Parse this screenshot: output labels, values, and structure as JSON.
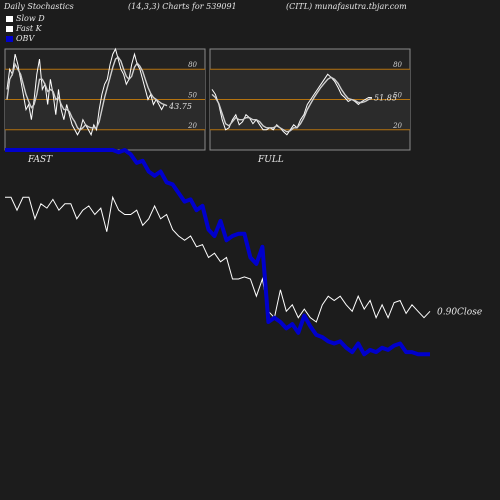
{
  "header": {
    "left": "Daily Stochastics",
    "mid": "(14,3,3) Charts for 539091",
    "right": "(CITL) munafasutra.tbjar.com"
  },
  "legend": [
    {
      "label": "Slow  D",
      "color": "#ffffff"
    },
    {
      "label": "Fast K",
      "color": "#ffffff"
    },
    {
      "label": "OBV",
      "color": "#0000cc"
    }
  ],
  "chart_data": [
    {
      "type": "line",
      "name": "fast-stochastics",
      "title": "FAST",
      "ylim": [
        0,
        100
      ],
      "yticks": [
        20,
        50,
        80
      ],
      "hlines": [
        20,
        50,
        80
      ],
      "last_value_label": "43.75",
      "series": [
        {
          "name": "Fast K",
          "values": [
            60,
            80,
            75,
            95,
            85,
            70,
            55,
            40,
            45,
            30,
            50,
            75,
            90,
            60,
            65,
            45,
            70,
            55,
            35,
            60,
            40,
            30,
            45,
            35,
            25,
            20,
            15,
            20,
            30,
            25,
            20,
            15,
            25,
            20,
            40,
            55,
            65,
            70,
            85,
            95,
            100,
            90,
            80,
            75,
            65,
            70,
            85,
            95,
            85,
            80,
            70,
            60,
            50,
            55,
            45,
            50,
            45,
            40,
            45,
            43.75
          ]
        },
        {
          "name": "Slow D",
          "values": [
            50,
            70,
            75,
            85,
            80,
            75,
            65,
            55,
            48,
            42,
            45,
            55,
            70,
            70,
            65,
            58,
            60,
            58,
            50,
            52,
            45,
            40,
            40,
            38,
            32,
            28,
            22,
            20,
            22,
            25,
            23,
            22,
            22,
            22,
            28,
            40,
            52,
            62,
            72,
            82,
            90,
            92,
            88,
            80,
            73,
            70,
            73,
            82,
            86,
            83,
            78,
            70,
            62,
            56,
            52,
            50,
            48,
            46,
            45,
            44
          ]
        }
      ]
    },
    {
      "type": "line",
      "name": "full-stochastics",
      "title": "FULL",
      "ylim": [
        0,
        100
      ],
      "yticks": [
        20,
        50,
        80
      ],
      "hlines": [
        20,
        50,
        80
      ],
      "last_value_label": "51.85",
      "series": [
        {
          "name": "Fast K",
          "values": [
            60,
            55,
            45,
            30,
            20,
            22,
            30,
            35,
            25,
            28,
            35,
            32,
            26,
            30,
            25,
            20,
            20,
            22,
            20,
            25,
            22,
            18,
            15,
            20,
            25,
            22,
            30,
            35,
            45,
            50,
            55,
            60,
            65,
            70,
            75,
            72,
            68,
            62,
            55,
            52,
            48,
            50,
            48,
            45,
            48,
            50,
            52,
            51.85
          ]
        },
        {
          "name": "Slow D",
          "values": [
            55,
            52,
            46,
            36,
            26,
            24,
            28,
            32,
            30,
            30,
            32,
            32,
            30,
            30,
            28,
            24,
            22,
            22,
            22,
            24,
            22,
            20,
            18,
            19,
            22,
            22,
            26,
            32,
            40,
            46,
            52,
            57,
            62,
            66,
            70,
            72,
            70,
            66,
            60,
            55,
            51,
            50,
            49,
            47,
            47,
            48,
            50,
            51
          ]
        }
      ]
    },
    {
      "type": "line",
      "name": "price-obv",
      "ylim": [
        0,
        100
      ],
      "last_value_label": "0.90",
      "last_value_suffix": "Close",
      "series": [
        {
          "name": "Close",
          "color": "#ffffff",
          "values": [
            78,
            78,
            72,
            78,
            78,
            68,
            75,
            73,
            77,
            72,
            75,
            75,
            68,
            72,
            74,
            70,
            73,
            62,
            78,
            72,
            70,
            70,
            72,
            65,
            68,
            74,
            68,
            70,
            63,
            60,
            58,
            60,
            55,
            56,
            50,
            52,
            48,
            50,
            40,
            40,
            41,
            40,
            32,
            40,
            25,
            22,
            35,
            25,
            28,
            22,
            26,
            22,
            20,
            28,
            32,
            30,
            32,
            28,
            25,
            32,
            26,
            30,
            22,
            28,
            22,
            29,
            30,
            24,
            28,
            25,
            22,
            25
          ]
        },
        {
          "name": "OBV",
          "color": "#0000cc",
          "values": [
            100,
            100,
            100,
            100,
            100,
            100,
            100,
            100,
            100,
            100,
            100,
            100,
            100,
            100,
            100,
            100,
            100,
            100,
            100,
            99,
            100,
            98,
            94,
            95,
            90,
            88,
            90,
            85,
            84,
            80,
            76,
            77,
            72,
            74,
            63,
            60,
            67,
            58,
            60,
            61,
            61,
            50,
            47,
            55,
            20,
            22,
            20,
            17,
            19,
            15,
            23,
            18,
            14,
            13,
            11,
            10,
            11,
            8,
            6,
            10,
            5,
            7,
            6,
            8,
            7,
            9,
            10,
            6,
            6,
            5,
            5,
            5
          ]
        }
      ]
    }
  ]
}
